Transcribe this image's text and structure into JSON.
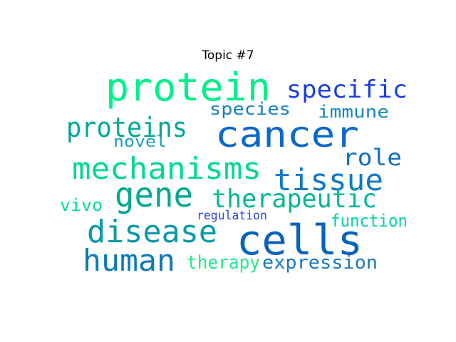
{
  "title": "Topic #7",
  "words": [
    {
      "text": "protein",
      "color": "#00f08a"
    },
    {
      "text": "specific",
      "color": "#1a3ee0"
    },
    {
      "text": "cancer",
      "color": "#0a68cc"
    },
    {
      "text": "species",
      "color": "#1580c2"
    },
    {
      "text": "immune",
      "color": "#1a8ab6"
    },
    {
      "text": "proteins",
      "color": "#00a89a"
    },
    {
      "text": "novel",
      "color": "#1a9ec0"
    },
    {
      "text": "role",
      "color": "#0f70c0"
    },
    {
      "text": "mechanisms",
      "color": "#00d890"
    },
    {
      "text": "tissue",
      "color": "#1078c8"
    },
    {
      "text": "gene",
      "color": "#00a88e"
    },
    {
      "text": "therapeutic",
      "color": "#00b896"
    },
    {
      "text": "vivo",
      "color": "#00e098"
    },
    {
      "text": "regulation",
      "color": "#2a4ad6"
    },
    {
      "text": "function",
      "color": "#00d4a0"
    },
    {
      "text": "disease",
      "color": "#0a9aa8"
    },
    {
      "text": "cells",
      "color": "#0862b8"
    },
    {
      "text": "human",
      "color": "#0a7ab8"
    },
    {
      "text": "therapy",
      "color": "#22e890"
    },
    {
      "text": "expression",
      "color": "#1a78c0"
    }
  ]
}
